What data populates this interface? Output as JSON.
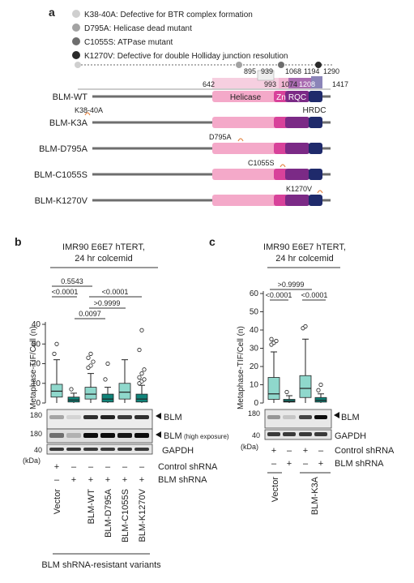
{
  "panel_a": {
    "label": "a",
    "legend": [
      {
        "text": "K38-40A: Defective for BTR complex formation",
        "color": "#cfcfcf"
      },
      {
        "text": "D795A: Helicase dead mutant",
        "color": "#a3a3a3"
      },
      {
        "text": "C1055S: ATPase mutant",
        "color": "#6e6e6e"
      },
      {
        "text": "K1270V: Defective for double Holliday junction resolution",
        "color": "#2a2a2a"
      }
    ],
    "positions": [
      "642",
      "895",
      "939",
      "993",
      "1068",
      "1074",
      "1194",
      "1208",
      "1290",
      "1417"
    ],
    "domains": {
      "helicase": "Helicase",
      "zn": "Zn",
      "rqc": "RQC",
      "hrdc": "HRDC"
    },
    "constructs": [
      {
        "name": "BLM-WT",
        "mutation": ""
      },
      {
        "name": "BLM-K3A",
        "mutation": "K38-40A"
      },
      {
        "name": "BLM-D795A",
        "mutation": "D795A"
      },
      {
        "name": "BLM-C1055S",
        "mutation": "C1055S"
      },
      {
        "name": "BLM-K1270V",
        "mutation": "K1270V"
      }
    ]
  },
  "panel_b": {
    "label": "b",
    "title_line1": "IMR90 E6E7 hTERT,",
    "title_line2": "24 hr colcemid",
    "ylabel": "Metaphase-TIF/Cell (n)",
    "pvalues": [
      "0.5543",
      "<0.0001",
      "0.0097",
      ">0.9999",
      "<0.0001"
    ],
    "blot_labels": {
      "blm": "BLM",
      "blm_high_main": "BLM",
      "blm_high_sub": "(high exposure)",
      "gapdh": "GAPDH"
    },
    "mw": {
      "blm": "180",
      "blm_high": "180",
      "gapdh": "40",
      "unit": "(kDa)"
    },
    "shrna_rows": [
      {
        "label": "Control shRNA",
        "signs": [
          "+",
          "–",
          "–",
          "–",
          "–",
          "–"
        ]
      },
      {
        "label": "BLM shRNA",
        "signs": [
          "–",
          "+",
          "+",
          "+",
          "+",
          "+"
        ]
      }
    ],
    "lanes": [
      "Vector",
      "",
      "BLM-WT",
      "BLM-D795A",
      "BLM-C1055S",
      "BLM-K1270V"
    ],
    "footer": "BLM shRNA-resistant variants"
  },
  "panel_c": {
    "label": "c",
    "title_line1": "IMR90 E6E7 hTERT,",
    "title_line2": "24 hr colcemid",
    "ylabel": "Metaphase-TIF/Cell (n)",
    "pvalues": [
      ">0.9999",
      "<0.0001",
      "<0.0001"
    ],
    "blot_labels": {
      "blm": "BLM",
      "gapdh": "GAPDH"
    },
    "mw": {
      "blm": "180",
      "gapdh": "40",
      "unit": "(kDa)"
    },
    "shrna_rows": [
      {
        "label": "Control shRNA",
        "signs": [
          "+",
          "–",
          "+",
          "–"
        ]
      },
      {
        "label": "BLM shRNA",
        "signs": [
          "–",
          "+",
          "–",
          "+"
        ]
      }
    ],
    "lanes": [
      "Vector",
      "BLM-K3A"
    ]
  },
  "chart_data": [
    {
      "type": "box",
      "panel": "b",
      "ylabel": "Metaphase-TIF/Cell (n)",
      "ylim": [
        0,
        40
      ],
      "yticks": [
        0,
        10,
        20,
        30,
        40
      ],
      "colors": [
        "#8fd8cc",
        "#10847a",
        "#8fd8cc",
        "#10847a",
        "#8fd8cc",
        "#10847a"
      ],
      "groups": [
        {
          "q1": 3,
          "median": 6,
          "q3": 9.5,
          "whisker_low": 0,
          "whisker_high": 22,
          "outliers": [
            25,
            30
          ]
        },
        {
          "q1": 0.5,
          "median": 1.5,
          "q3": 3,
          "whisker_low": 0,
          "whisker_high": 5,
          "outliers": [
            7
          ]
        },
        {
          "q1": 2,
          "median": 4.5,
          "q3": 8,
          "whisker_low": 0,
          "whisker_high": 15,
          "outliers": [
            18,
            19,
            21,
            23,
            25
          ]
        },
        {
          "q1": 0.5,
          "median": 2,
          "q3": 4.5,
          "whisker_low": 0,
          "whisker_high": 8,
          "outliers": [
            12,
            20
          ]
        },
        {
          "q1": 2,
          "median": 5.5,
          "q3": 10,
          "whisker_low": 0,
          "whisker_high": 22,
          "outliers": []
        },
        {
          "q1": 0.5,
          "median": 2,
          "q3": 4.5,
          "whisker_low": 0,
          "whisker_high": 9,
          "outliers": [
            10,
            11,
            12,
            13,
            15,
            17,
            27,
            37
          ]
        }
      ]
    },
    {
      "type": "box",
      "panel": "c",
      "ylabel": "Metaphase-TIF/Cell (n)",
      "ylim": [
        0,
        60
      ],
      "yticks": [
        0,
        10,
        20,
        30,
        40,
        50,
        60
      ],
      "colors": [
        "#8fd8cc",
        "#10847a",
        "#8fd8cc",
        "#10847a"
      ],
      "groups": [
        {
          "q1": 2,
          "median": 5,
          "q3": 14,
          "whisker_low": 0,
          "whisker_high": 28,
          "outliers": [
            32,
            33,
            34,
            35
          ]
        },
        {
          "q1": 0.5,
          "median": 1,
          "q3": 2,
          "whisker_low": 0,
          "whisker_high": 4,
          "outliers": [
            6
          ]
        },
        {
          "q1": 3,
          "median": 8,
          "q3": 15,
          "whisker_low": 0,
          "whisker_high": 35,
          "outliers": [
            41,
            42
          ]
        },
        {
          "q1": 0.5,
          "median": 1.5,
          "q3": 3,
          "whisker_low": 0,
          "whisker_high": 5,
          "outliers": [
            7,
            10
          ]
        }
      ]
    }
  ]
}
